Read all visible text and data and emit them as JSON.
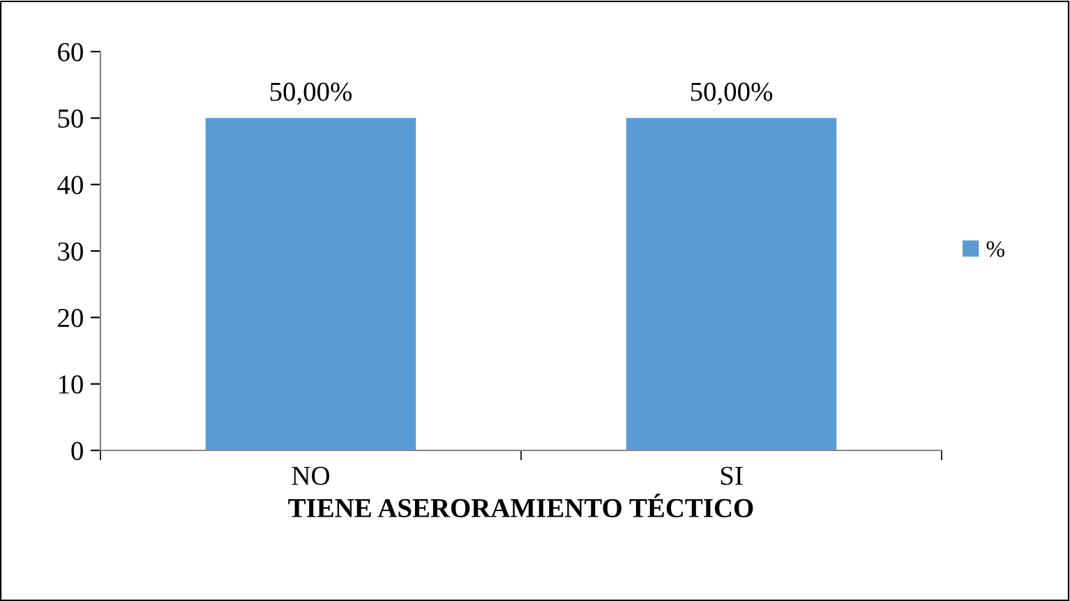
{
  "chart_data": {
    "type": "bar",
    "xlabel": "TIENE ASERORAMIENTO TÉCTICO",
    "categories": [
      "NO",
      "SI"
    ],
    "series": [
      {
        "name": "%",
        "color": "#5b9bd5",
        "values": [
          50,
          50
        ],
        "value_labels": [
          "50,00%",
          "50,00%"
        ]
      }
    ],
    "ylim": [
      0,
      60
    ],
    "yticks": [
      0,
      10,
      20,
      30,
      40,
      50,
      60
    ],
    "grid": false,
    "legend": "right"
  }
}
